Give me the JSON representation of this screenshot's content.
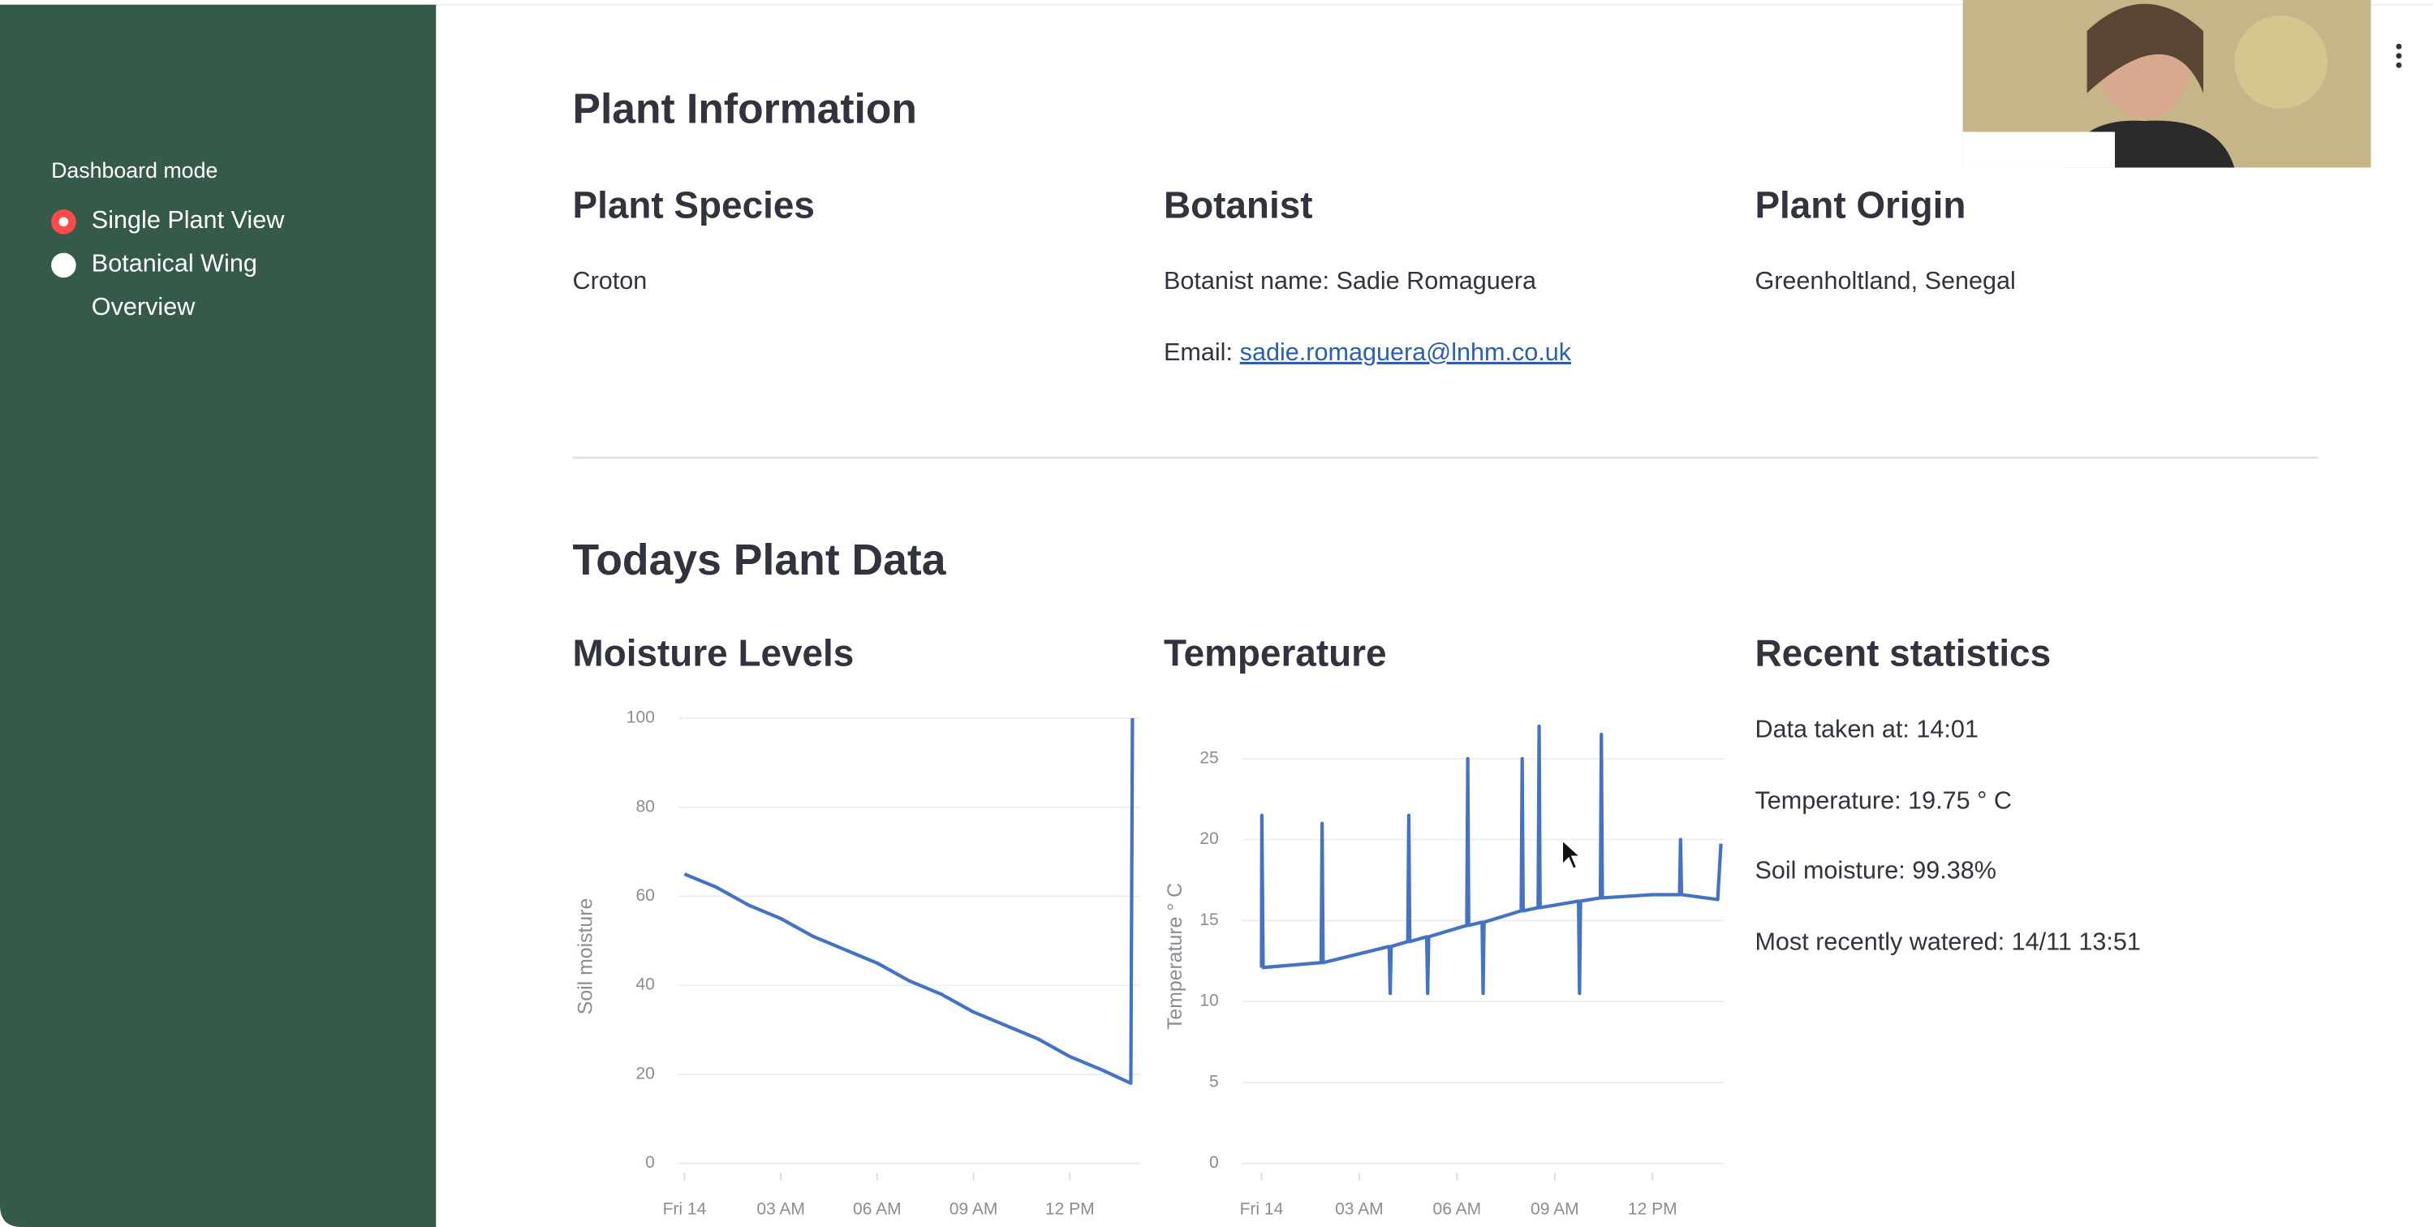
{
  "sidebar": {
    "label": "Dashboard mode",
    "options": [
      "Single Plant View",
      "Botanical Wing Overview"
    ]
  },
  "header": {
    "title": "Plant Information"
  },
  "info": [
    {
      "heading": "Plant Species",
      "lines": [
        "Croton"
      ]
    },
    {
      "heading": "Botanist",
      "lines": [
        "Botanist name: Sadie Romaguera"
      ],
      "email_label": "Email:",
      "email": "sadie.romaguera@lnhm.co.uk"
    },
    {
      "heading": "Plant Origin",
      "lines": [
        "Greenholtland, Senegal"
      ]
    }
  ],
  "section_title": "Todays Plant Data",
  "chart_data": [
    {
      "type": "line",
      "title": "Moisture Levels",
      "y_label": "Soil moisture",
      "color": "#4472c4",
      "grid": true,
      "x": [
        0,
        1,
        2,
        3,
        4,
        5,
        6,
        7,
        8,
        9,
        10,
        11,
        12,
        13,
        13.9,
        13.95
      ],
      "values": [
        65,
        62,
        58,
        55,
        51,
        48,
        45,
        41,
        38,
        34,
        31,
        28,
        24,
        21,
        18,
        100
      ],
      "xlim": [
        -0.2,
        14.2
      ],
      "ylim": [
        0,
        100
      ],
      "xticks": [
        {
          "value": 0,
          "label": "Fri 14"
        },
        {
          "value": 3,
          "label": "03 AM"
        },
        {
          "value": 6,
          "label": "06 AM"
        },
        {
          "value": 9,
          "label": "09 AM"
        },
        {
          "value": 12,
          "label": "12 PM"
        }
      ],
      "yticks": [
        0,
        20,
        40,
        60,
        80,
        100
      ]
    },
    {
      "type": "line",
      "title": "Temperature",
      "y_label": "Temperature ° C",
      "color": "#4472c4",
      "grid": true,
      "x": [
        0,
        0.01,
        0.05,
        1.83,
        1.86,
        1.89,
        3.92,
        3.95,
        3.98,
        4.49,
        4.52,
        4.55,
        5.07,
        5.1,
        5.13,
        6.3,
        6.33,
        6.36,
        6.77,
        6.8,
        6.83,
        7.97,
        8.0,
        8.03,
        8.49,
        8.52,
        8.55,
        9.73,
        9.76,
        9.79,
        10.4,
        10.43,
        10.46,
        12,
        12.83,
        12.86,
        12.89,
        14,
        14.1
      ],
      "values": [
        12.1,
        21.5,
        12.1,
        12.4,
        21,
        12.4,
        13.4,
        10.5,
        13.4,
        13.7,
        21.5,
        13.7,
        14,
        10.5,
        14,
        14.7,
        25,
        14.7,
        14.9,
        10.5,
        14.9,
        15.6,
        25,
        15.6,
        15.8,
        27,
        15.8,
        16.2,
        10.5,
        16.2,
        16.4,
        26.5,
        16.4,
        16.6,
        16.6,
        20,
        16.6,
        16.3,
        19.75
      ],
      "xlim": [
        -0.6,
        14.2
      ],
      "ylim": [
        0,
        27.5
      ],
      "xticks": [
        {
          "value": 0,
          "label": "Fri 14"
        },
        {
          "value": 3,
          "label": "03 AM"
        },
        {
          "value": 6,
          "label": "06 AM"
        },
        {
          "value": 9,
          "label": "09 AM"
        },
        {
          "value": 12,
          "label": "12 PM"
        }
      ],
      "yticks": [
        0,
        5,
        10,
        15,
        20,
        25
      ]
    }
  ],
  "stats": {
    "heading": "Recent statistics",
    "lines": [
      "Data taken at: 14:01",
      "Temperature: 19.75 ° C",
      "Soil moisture: 99.38%",
      "Most recently watered: 14/11 13:51"
    ]
  }
}
